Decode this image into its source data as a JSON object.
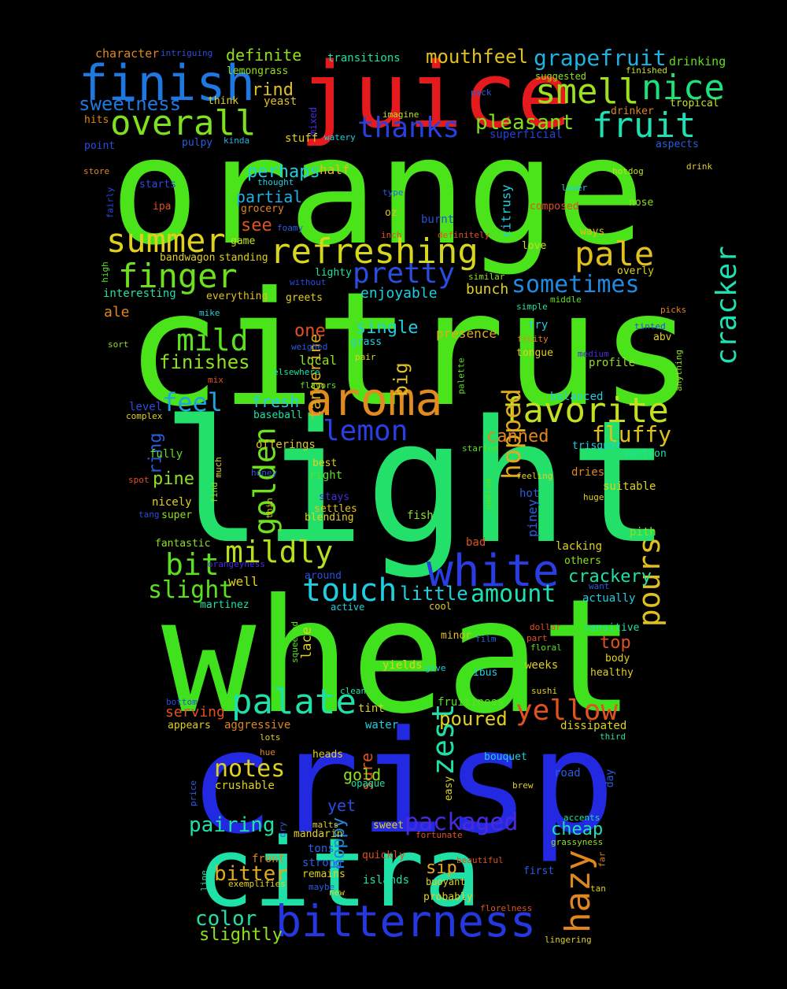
{
  "words": [
    {
      "text": "orange",
      "color": "#4be31a"
    },
    {
      "text": "citrus",
      "color": "#4be31a"
    },
    {
      "text": "light",
      "color": "#22e06a"
    },
    {
      "text": "wheat",
      "color": "#40e21e"
    },
    {
      "text": "crisp",
      "color": "#2229e0"
    },
    {
      "text": "citra",
      "color": "#1fe1a8"
    },
    {
      "text": "juice",
      "color": "#e41a1c"
    },
    {
      "text": "finish",
      "color": "#1f78e0"
    },
    {
      "text": "aroma",
      "color": "#e08a1f"
    },
    {
      "text": "bitterness",
      "color": "#2538e0"
    },
    {
      "text": "white",
      "color": "#2a3de3"
    },
    {
      "text": "refreshing",
      "color": "#d6d61f"
    },
    {
      "text": "favorite",
      "color": "#c2e01f"
    },
    {
      "text": "overall",
      "color": "#7ee01f"
    },
    {
      "text": "smell",
      "color": "#9ce01f"
    },
    {
      "text": "nice",
      "color": "#1fe07a"
    },
    {
      "text": "fruit",
      "color": "#1fe0b2"
    },
    {
      "text": "summer",
      "color": "#e0d01f"
    },
    {
      "text": "finger",
      "color": "#6ee01f"
    },
    {
      "text": "pale",
      "color": "#e0c01f"
    },
    {
      "text": "palate",
      "color": "#1fe0a6"
    },
    {
      "text": "hazy",
      "color": "#e0861f"
    },
    {
      "text": "touch",
      "color": "#1fcfe0"
    },
    {
      "text": "pretty",
      "color": "#2a4de0"
    },
    {
      "text": "thanks",
      "color": "#2a3fe0"
    },
    {
      "text": "lemon",
      "color": "#2a3fe0"
    },
    {
      "text": "golden",
      "color": "#6ee01f"
    },
    {
      "text": "mildly",
      "color": "#b6e01f"
    },
    {
      "text": "mild",
      "color": "#5ae01f"
    },
    {
      "text": "bit",
      "color": "#5ae01f"
    },
    {
      "text": "feel",
      "color": "#1fa6e0"
    },
    {
      "text": "pours",
      "color": "#e0c01f"
    },
    {
      "text": "yellow",
      "color": "#e0521f"
    },
    {
      "text": "cracker",
      "color": "#1fe0b2"
    },
    {
      "text": "grapefruit",
      "color": "#1fb2e0"
    },
    {
      "text": "mouthfeel",
      "color": "#e0c01f"
    },
    {
      "text": "sometimes",
      "color": "#1f8ae0"
    },
    {
      "text": "zest",
      "color": "#1fe0a6"
    },
    {
      "text": "hopped",
      "color": "#e0aa1f"
    },
    {
      "text": "packaged",
      "color": "#4a2ae0"
    },
    {
      "text": "slight",
      "color": "#5ae01f"
    },
    {
      "text": "amount",
      "color": "#1fe0b2"
    },
    {
      "text": "notes",
      "color": "#e0d01f"
    },
    {
      "text": "pleasant",
      "color": "#7ee01f"
    },
    {
      "text": "sweetness",
      "color": "#1f78e0"
    },
    {
      "text": "fluffy",
      "color": "#e0c01f"
    },
    {
      "text": "pairing",
      "color": "#1fe0a6"
    },
    {
      "text": "bitter",
      "color": "#e0aa1f"
    },
    {
      "text": "color",
      "color": "#1fe0a6"
    },
    {
      "text": "slightly",
      "color": "#8ee01f"
    },
    {
      "text": "finishes",
      "color": "#8ee01f"
    },
    {
      "text": "little",
      "color": "#1fcfe0"
    },
    {
      "text": "big",
      "color": "#e0c01f"
    },
    {
      "text": "tangerine",
      "color": "#e0aa1f"
    },
    {
      "text": "poured",
      "color": "#e0d01f"
    },
    {
      "text": "hoppy",
      "color": "#1f8ae0"
    },
    {
      "text": "crackery",
      "color": "#1fe0a6"
    },
    {
      "text": "perhaps",
      "color": "#1fcfe0"
    },
    {
      "text": "partial",
      "color": "#1fb2e0"
    },
    {
      "text": "canned",
      "color": "#e0861f"
    },
    {
      "text": "single",
      "color": "#1fcfe0"
    },
    {
      "text": "top",
      "color": "#e0521f"
    },
    {
      "text": "cheap",
      "color": "#1fe0b2"
    },
    {
      "text": "ring",
      "color": "#2a5de0"
    },
    {
      "text": "see",
      "color": "#e0521f"
    },
    {
      "text": "one",
      "color": "#e0521f"
    },
    {
      "text": "definite",
      "color": "#8ee01f"
    },
    {
      "text": "rind",
      "color": "#e0c01f"
    },
    {
      "text": "sure",
      "color": "#e0521f"
    },
    {
      "text": "gold",
      "color": "#8ee01f"
    },
    {
      "text": "yet",
      "color": "#2a4de0"
    },
    {
      "text": "sip",
      "color": "#e0aa1f"
    },
    {
      "text": "pine",
      "color": "#8ee01f"
    },
    {
      "text": "fresh",
      "color": "#1fcfe0"
    },
    {
      "text": "bunch",
      "color": "#e0d01f"
    },
    {
      "text": "enjoyable",
      "color": "#1fcfe0"
    },
    {
      "text": "serving",
      "color": "#e0521f"
    },
    {
      "text": "ale",
      "color": "#e0861f"
    },
    {
      "text": "local",
      "color": "#8ee01f"
    },
    {
      "text": "presence",
      "color": "#e0aa1f"
    },
    {
      "text": "character",
      "color": "#e0861f"
    },
    {
      "text": "intriguing",
      "color": "#2a4de0"
    },
    {
      "text": "transitions",
      "color": "#1fe0a6"
    },
    {
      "text": "drinking",
      "color": "#5ae01f"
    },
    {
      "text": "lemongrass",
      "color": "#8ee01f"
    },
    {
      "text": "suggested",
      "color": "#8ee01f"
    },
    {
      "text": "finished",
      "color": "#c2e01f"
    },
    {
      "text": "think",
      "color": "#e0d01f"
    },
    {
      "text": "yeast",
      "color": "#e0c01f"
    },
    {
      "text": "mixed",
      "color": "#4a2ae0"
    },
    {
      "text": "imagine",
      "color": "#c2e01f"
    },
    {
      "text": "pack",
      "color": "#2a5de0"
    },
    {
      "text": "drinker",
      "color": "#e0861f"
    },
    {
      "text": "tropical",
      "color": "#c2e01f"
    },
    {
      "text": "hits",
      "color": "#e0861f"
    },
    {
      "text": "point",
      "color": "#2a4de0"
    },
    {
      "text": "pulpy",
      "color": "#2a5de0"
    },
    {
      "text": "kinda",
      "color": "#1fb2e0"
    },
    {
      "text": "stuff",
      "color": "#e0d01f"
    },
    {
      "text": "watery",
      "color": "#1fcfe0"
    },
    {
      "text": "superficial",
      "color": "#2a3fe0"
    },
    {
      "text": "aspects",
      "color": "#2a5de0"
    },
    {
      "text": "store",
      "color": "#e0861f"
    },
    {
      "text": "starts",
      "color": "#2a4de0"
    },
    {
      "text": "thought",
      "color": "#1fcfe0"
    },
    {
      "text": "half",
      "color": "#e0c01f"
    },
    {
      "text": "hotdog",
      "color": "#c2e01f"
    },
    {
      "text": "drink",
      "color": "#e0d01f"
    },
    {
      "text": "fairly",
      "color": "#2a4de0"
    },
    {
      "text": "ipa",
      "color": "#e0521f"
    },
    {
      "text": "grocery",
      "color": "#e0861f"
    },
    {
      "text": "type",
      "color": "#2a5de0"
    },
    {
      "text": "lower",
      "color": "#1fcfe0"
    },
    {
      "text": "composed",
      "color": "#e0521f"
    },
    {
      "text": "nose",
      "color": "#8ee01f"
    },
    {
      "text": "oz",
      "color": "#e0c01f"
    },
    {
      "text": "burnt",
      "color": "#2a4de0"
    },
    {
      "text": "citrusy",
      "color": "#1fcfe0"
    },
    {
      "text": "foamy",
      "color": "#2a5de0"
    },
    {
      "text": "inch",
      "color": "#e0521f"
    },
    {
      "text": "definitely",
      "color": "#e0521f"
    },
    {
      "text": "ways",
      "color": "#e0c01f"
    },
    {
      "text": "game",
      "color": "#c2e01f"
    },
    {
      "text": "love",
      "color": "#c2e01f"
    },
    {
      "text": "bandwagon",
      "color": "#e0d01f"
    },
    {
      "text": "standing",
      "color": "#e0d01f"
    },
    {
      "text": "high",
      "color": "#5ae01f"
    },
    {
      "text": "without",
      "color": "#2a4de0"
    },
    {
      "text": "lighty",
      "color": "#1fe0a6"
    },
    {
      "text": "similar",
      "color": "#8ee01f"
    },
    {
      "text": "overly",
      "color": "#e0d01f"
    },
    {
      "text": "interesting",
      "color": "#1fe0a6"
    },
    {
      "text": "everything",
      "color": "#e0c01f"
    },
    {
      "text": "greets",
      "color": "#e0d01f"
    },
    {
      "text": "simple",
      "color": "#1fe0a6"
    },
    {
      "text": "middle",
      "color": "#5ae01f"
    },
    {
      "text": "picks",
      "color": "#e0861f"
    },
    {
      "text": "mike",
      "color": "#1fcfe0"
    },
    {
      "text": "tinted",
      "color": "#2a4de0"
    },
    {
      "text": "try",
      "color": "#1fcfe0"
    },
    {
      "text": "sort",
      "color": "#8ee01f"
    },
    {
      "text": "grass",
      "color": "#1fcfe0"
    },
    {
      "text": "fruity",
      "color": "#e0861f"
    },
    {
      "text": "abv",
      "color": "#e0d01f"
    },
    {
      "text": "weighed",
      "color": "#2a5de0"
    },
    {
      "text": "pair",
      "color": "#e0d01f"
    },
    {
      "text": "tongue",
      "color": "#e0d01f"
    },
    {
      "text": "medium",
      "color": "#4a2ae0"
    },
    {
      "text": "profile",
      "color": "#8ee01f"
    },
    {
      "text": "elsewhere",
      "color": "#1fe0a6"
    },
    {
      "text": "anything",
      "color": "#8ee01f"
    },
    {
      "text": "mix",
      "color": "#e0521f"
    },
    {
      "text": "flavors",
      "color": "#5ae01f"
    },
    {
      "text": "palette",
      "color": "#5ae01f"
    },
    {
      "text": "level",
      "color": "#2a4de0"
    },
    {
      "text": "balanced",
      "color": "#1fcfe0"
    },
    {
      "text": "complex",
      "color": "#e0d01f"
    },
    {
      "text": "baseball",
      "color": "#1fe0a6"
    },
    {
      "text": "offerings",
      "color": "#e0c01f"
    },
    {
      "text": "trisquit",
      "color": "#1fcfe0"
    },
    {
      "text": "started",
      "color": "#5ae01f"
    },
    {
      "text": "section",
      "color": "#1fe0a6"
    },
    {
      "text": "much",
      "color": "#e0d01f"
    },
    {
      "text": "fully",
      "color": "#5ae01f"
    },
    {
      "text": "best",
      "color": "#e0d01f"
    },
    {
      "text": "spot",
      "color": "#e0521f"
    },
    {
      "text": "right",
      "color": "#5ae01f"
    },
    {
      "text": "honey",
      "color": "#2a5de0"
    },
    {
      "text": "find",
      "color": "#8ee01f"
    },
    {
      "text": "feeling",
      "color": "#e0d01f"
    },
    {
      "text": "dries",
      "color": "#e0861f"
    },
    {
      "text": "suitable",
      "color": "#e0d01f"
    },
    {
      "text": "huge",
      "color": "#e0d01f"
    },
    {
      "text": "stays",
      "color": "#4a2ae0"
    },
    {
      "text": "peeled",
      "color": "#5ae01f"
    },
    {
      "text": "nicely",
      "color": "#e0d01f"
    },
    {
      "text": "settles",
      "color": "#e0c01f"
    },
    {
      "text": "tang",
      "color": "#2a4de0"
    },
    {
      "text": "super",
      "color": "#8ee01f"
    },
    {
      "text": "thin",
      "color": "#e0d01f"
    },
    {
      "text": "blending",
      "color": "#e0d01f"
    },
    {
      "text": "fish",
      "color": "#8ee01f"
    },
    {
      "text": "hot",
      "color": "#2a5de0"
    },
    {
      "text": "piney",
      "color": "#2a5de0"
    },
    {
      "text": "pith",
      "color": "#8ee01f"
    },
    {
      "text": "fantastic",
      "color": "#8ee01f"
    },
    {
      "text": "bad",
      "color": "#e0521f"
    },
    {
      "text": "lacking",
      "color": "#e0d01f"
    },
    {
      "text": "orangeyness",
      "color": "#4a2ae0"
    },
    {
      "text": "others",
      "color": "#8ee01f"
    },
    {
      "text": "around",
      "color": "#2a4de0"
    },
    {
      "text": "want",
      "color": "#2a5de0"
    },
    {
      "text": "well",
      "color": "#e0d01f"
    },
    {
      "text": "actually",
      "color": "#1fcfe0"
    },
    {
      "text": "martinez",
      "color": "#1fe0a6"
    },
    {
      "text": "active",
      "color": "#1fcfe0"
    },
    {
      "text": "cool",
      "color": "#e0d01f"
    },
    {
      "text": "dollar",
      "color": "#e0521f"
    },
    {
      "text": "sensitive",
      "color": "#1fe0a6"
    },
    {
      "text": "part",
      "color": "#e0521f"
    },
    {
      "text": "minor",
      "color": "#e0c01f"
    },
    {
      "text": "film",
      "color": "#2a5de0"
    },
    {
      "text": "floral",
      "color": "#5ae01f"
    },
    {
      "text": "lace",
      "color": "#e0d01f"
    },
    {
      "text": "body",
      "color": "#e0d01f"
    },
    {
      "text": "squeezed",
      "color": "#5ae01f"
    },
    {
      "text": "yields",
      "color": "#e0d01f"
    },
    {
      "text": "give",
      "color": "#1fcfe0"
    },
    {
      "text": "ibus",
      "color": "#1fcfe0"
    },
    {
      "text": "weeks",
      "color": "#e0d01f"
    },
    {
      "text": "healthy",
      "color": "#e0d01f"
    },
    {
      "text": "clean",
      "color": "#1fe0a6"
    },
    {
      "text": "sushi",
      "color": "#e0d01f"
    },
    {
      "text": "bottom",
      "color": "#2a4de0"
    },
    {
      "text": "tint",
      "color": "#e0d01f"
    },
    {
      "text": "fruitiness",
      "color": "#5ae01f"
    },
    {
      "text": "dissipated",
      "color": "#e0d01f"
    },
    {
      "text": "appears",
      "color": "#e0d01f"
    },
    {
      "text": "aggressive",
      "color": "#e0861f"
    },
    {
      "text": "water",
      "color": "#1fcfe0"
    },
    {
      "text": "lots",
      "color": "#e0d01f"
    },
    {
      "text": "third",
      "color": "#1fe0a6"
    },
    {
      "text": "hue",
      "color": "#e0861f"
    },
    {
      "text": "heads",
      "color": "#e0d01f"
    },
    {
      "text": "bouquet",
      "color": "#1fcfe0"
    },
    {
      "text": "crushable",
      "color": "#e0d01f"
    },
    {
      "text": "opaque",
      "color": "#1fe0a6"
    },
    {
      "text": "easy",
      "color": "#e0d01f"
    },
    {
      "text": "road",
      "color": "#2a5de0"
    },
    {
      "text": "day",
      "color": "#2a5de0"
    },
    {
      "text": "price",
      "color": "#2a5de0"
    },
    {
      "text": "brew",
      "color": "#e0d01f"
    },
    {
      "text": "accents",
      "color": "#1fe0a6"
    },
    {
      "text": "dry",
      "color": "#2a5de0"
    },
    {
      "text": "malts",
      "color": "#e0d01f"
    },
    {
      "text": "sweet",
      "color": "#e0d01f"
    },
    {
      "text": "grassyness",
      "color": "#8ee01f"
    },
    {
      "text": "mandarin",
      "color": "#e0d01f"
    },
    {
      "text": "fortunate",
      "color": "#e0521f"
    },
    {
      "text": "far",
      "color": "#e0861f"
    },
    {
      "text": "tons",
      "color": "#2a5de0"
    },
    {
      "text": "quickly",
      "color": "#e0521f"
    },
    {
      "text": "beautiful",
      "color": "#e0521f"
    },
    {
      "text": "front",
      "color": "#e0861f"
    },
    {
      "text": "strong",
      "color": "#2a5de0"
    },
    {
      "text": "first",
      "color": "#2a5de0"
    },
    {
      "text": "remains",
      "color": "#e0d01f"
    },
    {
      "text": "islands",
      "color": "#1fe0a6"
    },
    {
      "text": "line",
      "color": "#1fe0a6"
    },
    {
      "text": "exemplifies",
      "color": "#e0d01f"
    },
    {
      "text": "maybe",
      "color": "#2a5de0"
    },
    {
      "text": "buoyant",
      "color": "#e0d01f"
    },
    {
      "text": "new",
      "color": "#e0d01f"
    },
    {
      "text": "probably",
      "color": "#e0d01f"
    },
    {
      "text": "tan",
      "color": "#e0d01f"
    },
    {
      "text": "florelness",
      "color": "#e0521f"
    },
    {
      "text": "lingering",
      "color": "#e0d01f"
    }
  ]
}
